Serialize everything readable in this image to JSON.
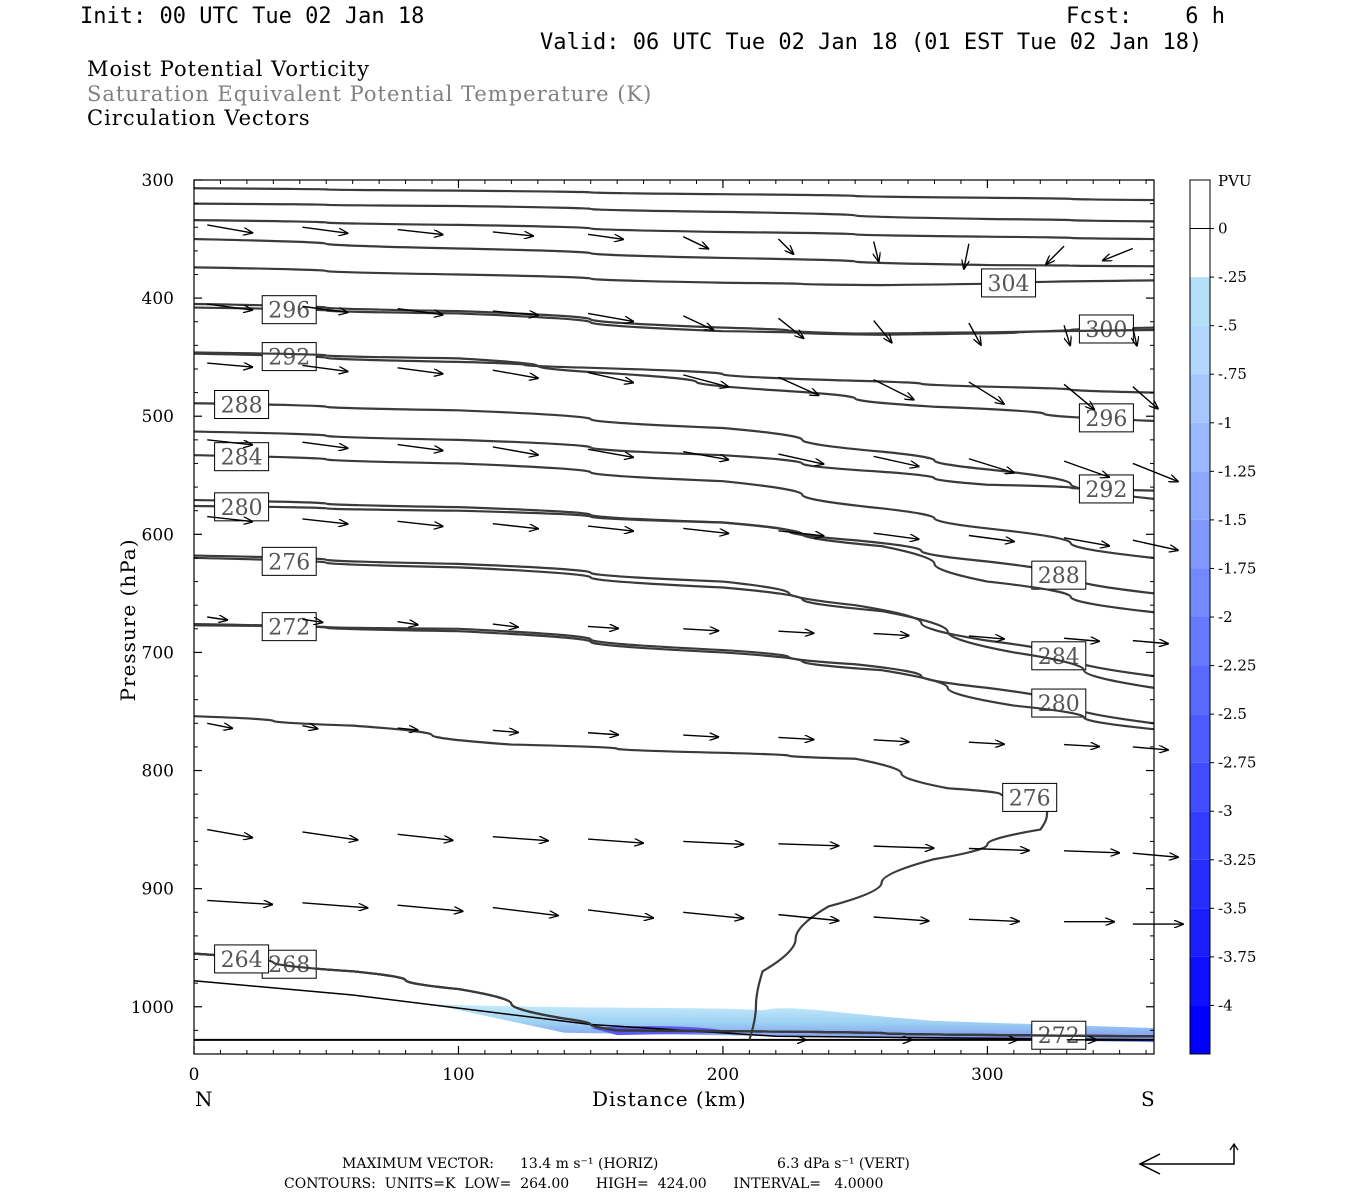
{
  "header": {
    "init": "Init: 00 UTC Tue 02 Jan 18",
    "fcst": "Fcst:    6 h",
    "valid": "Valid: 06 UTC Tue 02 Jan 18 (01 EST Tue 02 Jan 18)"
  },
  "titles": {
    "line1": "Moist Potential Vorticity",
    "line2": "Saturation Equivalent Potential Temperature (K)",
    "line3": "Circulation Vectors"
  },
  "colors": {
    "title2": "#808080",
    "contour": "#3a3a3a",
    "pv_light": "#b3e0f7",
    "pv_dark": "#2020ff"
  },
  "chart_data": {
    "type": "cross-section",
    "xlabel": "Distance (km)",
    "ylabel": "Pressure (hPa)",
    "xlim": [
      0,
      363
    ],
    "ylim": [
      300,
      1040
    ],
    "y_scale": "linear-inverted",
    "x_ticks": [
      "0",
      "100",
      "200",
      "300"
    ],
    "x_tick_values": [
      0,
      100,
      200,
      300
    ],
    "y_ticks": [
      "300",
      "400",
      "500",
      "600",
      "700",
      "800",
      "900",
      "1000"
    ],
    "y_tick_values": [
      300,
      400,
      500,
      600,
      700,
      800,
      900,
      1000
    ],
    "end_labels": {
      "left": "N",
      "right": "S"
    },
    "colorbar": {
      "unit": "PVU",
      "labels": [
        "0",
        "-.25",
        "-.5",
        "-.75",
        "-1",
        "-1.25",
        "-1.5",
        "-1.75",
        "-2",
        "-2.25",
        "-2.5",
        "-2.75",
        "-3",
        "-3.25",
        "-3.5",
        "-3.75",
        "-4"
      ]
    },
    "contours": [
      {
        "label": "",
        "points": [
          [
            0,
            307
          ],
          [
            100,
            309
          ],
          [
            200,
            312
          ],
          [
            300,
            315
          ],
          [
            363,
            317
          ]
        ]
      },
      {
        "label": "",
        "points": [
          [
            0,
            320
          ],
          [
            100,
            322
          ],
          [
            200,
            327
          ],
          [
            300,
            333
          ],
          [
            363,
            335
          ]
        ]
      },
      {
        "label": "",
        "points": [
          [
            0,
            334
          ],
          [
            100,
            338
          ],
          [
            200,
            344
          ],
          [
            300,
            348
          ],
          [
            363,
            350
          ]
        ]
      },
      {
        "label": "",
        "points": [
          [
            0,
            350
          ],
          [
            100,
            358
          ],
          [
            200,
            366
          ],
          [
            300,
            372
          ],
          [
            363,
            373
          ]
        ]
      },
      {
        "label": "304",
        "lx": 308,
        "points": [
          [
            0,
            374
          ],
          [
            100,
            380
          ],
          [
            200,
            387
          ],
          [
            260,
            389
          ],
          [
            363,
            385
          ]
        ]
      },
      {
        "label": "300",
        "lx": 345,
        "points": [
          [
            0,
            405
          ],
          [
            100,
            411
          ],
          [
            200,
            425
          ],
          [
            250,
            430
          ],
          [
            300,
            429
          ],
          [
            363,
            425
          ]
        ]
      },
      {
        "label": "296",
        "lx": 36,
        "points": [
          [
            0,
            408
          ],
          [
            100,
            413
          ],
          [
            200,
            428
          ],
          [
            260,
            431
          ],
          [
            363,
            427
          ]
        ]
      },
      {
        "label": "292",
        "lx": 36,
        "points": [
          [
            0,
            447
          ],
          [
            100,
            454
          ],
          [
            150,
            459
          ],
          [
            250,
            470
          ],
          [
            300,
            475
          ],
          [
            363,
            480
          ]
        ]
      },
      {
        "label": "296",
        "lx": 345,
        "points": [
          [
            0,
            446
          ],
          [
            100,
            451
          ],
          [
            160,
            464
          ],
          [
            220,
            478
          ],
          [
            280,
            492
          ],
          [
            363,
            504
          ]
        ]
      },
      {
        "label": "288",
        "lx": 18,
        "points": [
          [
            0,
            489
          ],
          [
            100,
            495
          ],
          [
            200,
            510
          ],
          [
            260,
            530
          ],
          [
            300,
            545
          ],
          [
            363,
            570
          ]
        ]
      },
      {
        "label": "292",
        "lx": 345,
        "points": [
          [
            0,
            513
          ],
          [
            100,
            520
          ],
          [
            200,
            533
          ],
          [
            260,
            547
          ],
          [
            300,
            558
          ],
          [
            363,
            563
          ]
        ]
      },
      {
        "label": "284",
        "lx": 18,
        "points": [
          [
            0,
            533
          ],
          [
            100,
            540
          ],
          [
            200,
            555
          ],
          [
            260,
            578
          ],
          [
            300,
            595
          ],
          [
            363,
            620
          ]
        ]
      },
      {
        "label": "288",
        "lx": 327,
        "points": [
          [
            0,
            571
          ],
          [
            100,
            577
          ],
          [
            200,
            590
          ],
          [
            250,
            605
          ],
          [
            300,
            623
          ],
          [
            363,
            650
          ]
        ]
      },
      {
        "label": "280",
        "lx": 18,
        "points": [
          [
            0,
            576
          ],
          [
            100,
            580
          ],
          [
            200,
            590
          ],
          [
            260,
            610
          ],
          [
            300,
            640
          ],
          [
            363,
            666
          ]
        ]
      },
      {
        "label": "284",
        "lx": 327,
        "points": [
          [
            0,
            618
          ],
          [
            100,
            625
          ],
          [
            200,
            640
          ],
          [
            250,
            660
          ],
          [
            300,
            690
          ],
          [
            363,
            720
          ]
        ]
      },
      {
        "label": "276",
        "lx": 36,
        "points": [
          [
            0,
            620
          ],
          [
            100,
            628
          ],
          [
            200,
            645
          ],
          [
            260,
            665
          ],
          [
            310,
            700
          ],
          [
            363,
            730
          ]
        ]
      },
      {
        "label": "280",
        "lx": 327,
        "points": [
          [
            0,
            677
          ],
          [
            100,
            680
          ],
          [
            200,
            698
          ],
          [
            250,
            710
          ],
          [
            300,
            730
          ],
          [
            363,
            760
          ]
        ]
      },
      {
        "label": "272",
        "lx": 36,
        "points": [
          [
            0,
            676
          ],
          [
            100,
            682
          ],
          [
            200,
            700
          ],
          [
            260,
            715
          ],
          [
            310,
            745
          ],
          [
            363,
            765
          ]
        ]
      },
      {
        "label": "276",
        "lx": 316,
        "points": [
          [
            0,
            754
          ],
          [
            60,
            762
          ],
          [
            120,
            778
          ],
          [
            200,
            785
          ],
          [
            250,
            790
          ],
          [
            285,
            815
          ],
          [
            325,
            825
          ],
          [
            320,
            850
          ],
          [
            280,
            875
          ],
          [
            240,
            915
          ],
          [
            215,
            970
          ],
          [
            210,
            1028
          ]
        ]
      },
      {
        "label": "272",
        "lx": 327,
        "points": [
          [
            0,
            955
          ],
          [
            60,
            970
          ],
          [
            100,
            985
          ],
          [
            140,
            1010
          ],
          [
            160,
            1020
          ],
          [
            363,
            1025
          ]
        ]
      },
      {
        "label": "268",
        "lx": 36,
        "points": [
          [
            0,
            955
          ],
          [
            60,
            970
          ],
          [
            100,
            985
          ],
          [
            140,
            1010
          ],
          [
            160,
            1020
          ],
          [
            363,
            1025
          ]
        ]
      },
      {
        "label": "264",
        "lx": 18,
        "points": [
          [
            0,
            955
          ],
          [
            60,
            970
          ],
          [
            100,
            985
          ],
          [
            140,
            1010
          ],
          [
            160,
            1020
          ],
          [
            363,
            1025
          ]
        ]
      }
    ],
    "vector_note": "MAXIMUM VECTOR:  13.4 m s",
    "max_vector": {
      "horiz": "13.4 m s⁻¹ (HORIZ)",
      "vert": "6.3 dPa s⁻¹ (VERT)"
    },
    "contours_info": "CONTOURS:  UNITS=K  LOW=  264.00      HIGH=  424.00      INTERVAL=   4.0000"
  },
  "footer": {
    "max_vector_label": "MAXIMUM VECTOR:",
    "horiz": "13.4 m s⁻¹ (HORIZ)",
    "vert": "6.3 dPa s⁻¹ (VERT)",
    "contours": "CONTOURS:  UNITS=K  LOW=  264.00      HIGH=  424.00      INTERVAL=   4.0000"
  }
}
